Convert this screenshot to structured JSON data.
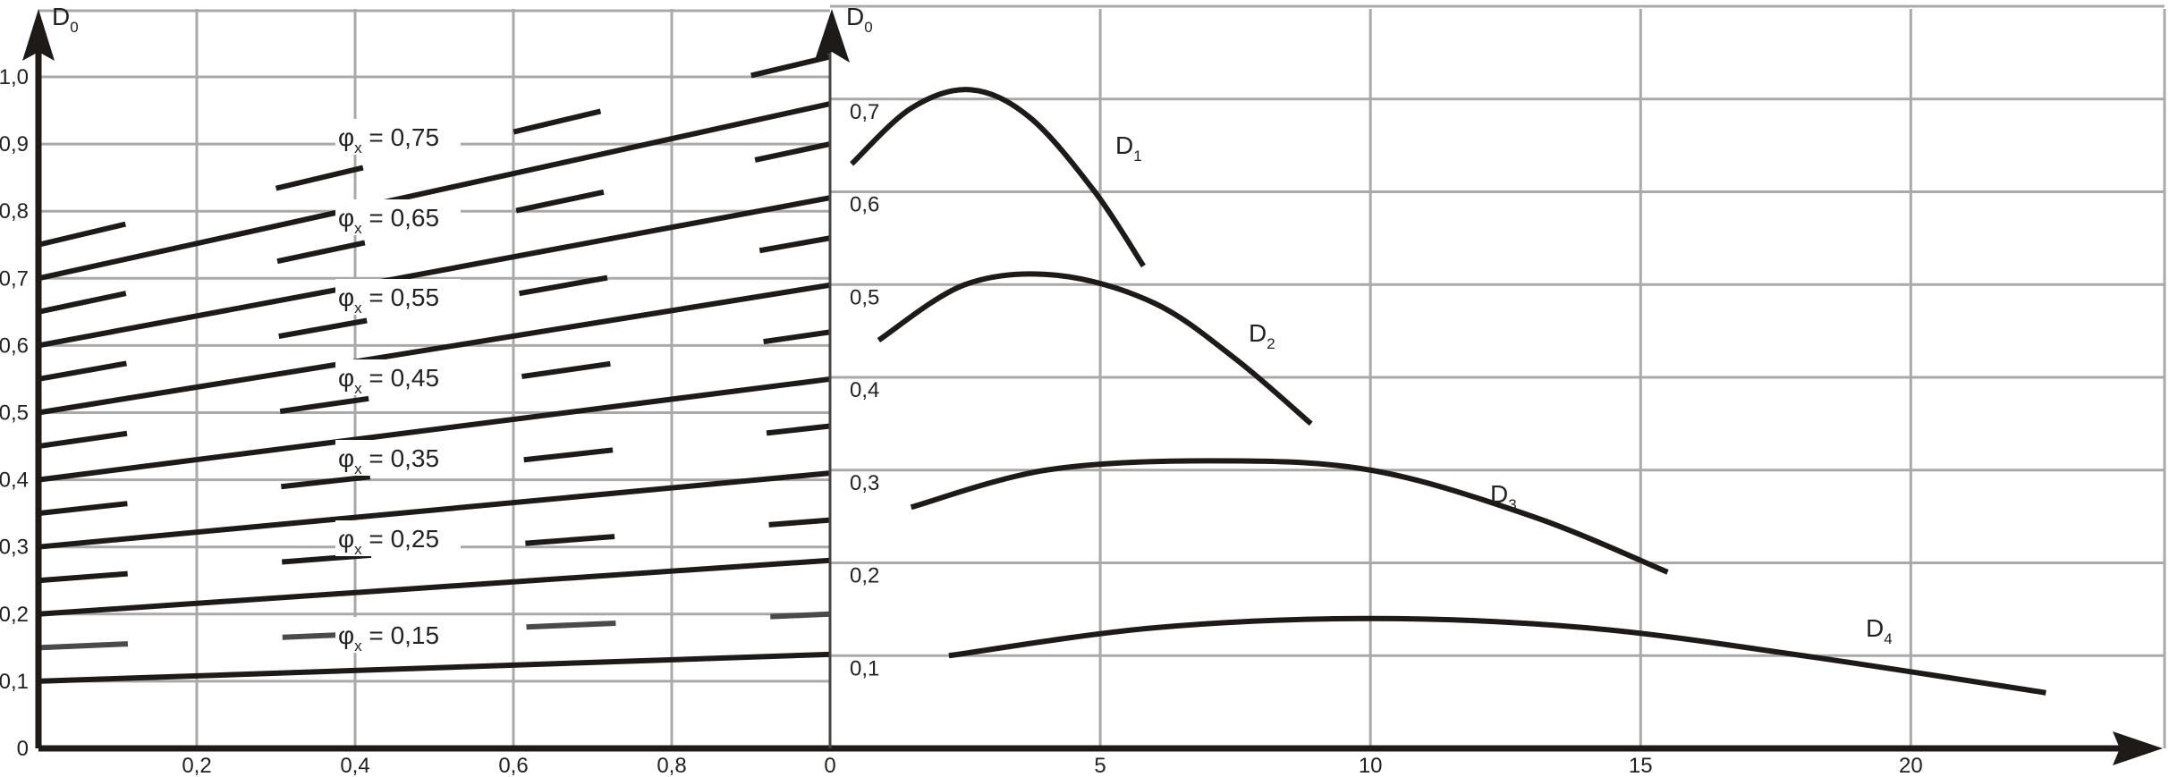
{
  "chart_data": [
    {
      "type": "line",
      "panel": "left",
      "ylabel": "D",
      "ylabel_sub": "0",
      "xlim": [
        0,
        1.0
      ],
      "ylim": [
        0,
        1.0
      ],
      "x_ticks": [
        "0,2",
        "0,4",
        "0,6",
        "0,8"
      ],
      "y_ticks": [
        "0",
        "0,1",
        "0,2",
        "0,3",
        "0,4",
        "0,5",
        "0,6",
        "0,7",
        "0,8",
        "0,9",
        "1,0"
      ],
      "grid": true,
      "series": [
        {
          "name": "φx = 0,15",
          "x": [
            0,
            1.0
          ],
          "y": [
            0.1,
            0.14
          ],
          "dashed": {
            "x": [
              0,
              1.0
            ],
            "y": [
              0.15,
              0.2
            ]
          }
        },
        {
          "name": "φx = 0,25",
          "x": [
            0,
            1.0
          ],
          "y": [
            0.2,
            0.28
          ],
          "dashed": {
            "x": [
              0,
              1.0
            ],
            "y": [
              0.25,
              0.34
            ]
          }
        },
        {
          "name": "φx = 0,35",
          "x": [
            0,
            1.0
          ],
          "y": [
            0.3,
            0.41
          ],
          "dashed": {
            "x": [
              0,
              1.0
            ],
            "y": [
              0.35,
              0.48
            ]
          }
        },
        {
          "name": "φx = 0,45",
          "x": [
            0,
            1.0
          ],
          "y": [
            0.4,
            0.55
          ],
          "dashed": {
            "x": [
              0,
              1.0
            ],
            "y": [
              0.45,
              0.62
            ]
          }
        },
        {
          "name": "φx = 0,55",
          "x": [
            0,
            1.0
          ],
          "y": [
            0.5,
            0.69
          ],
          "dashed": {
            "x": [
              0,
              1.0
            ],
            "y": [
              0.55,
              0.76
            ]
          }
        },
        {
          "name": "φx = 0,65",
          "x": [
            0,
            1.0
          ],
          "y": [
            0.6,
            0.82
          ],
          "dashed": {
            "x": [
              0,
              1.0
            ],
            "y": [
              0.65,
              0.9
            ]
          }
        },
        {
          "name": "φx = 0,75",
          "x": [
            0,
            1.0
          ],
          "y": [
            0.7,
            0.96
          ],
          "dashed": {
            "x": [
              0,
              1.0
            ],
            "y": [
              0.75,
              1.03
            ]
          }
        }
      ]
    },
    {
      "type": "line",
      "panel": "right",
      "ylabel": "D",
      "ylabel_sub": "0",
      "xlim": [
        0,
        24
      ],
      "ylim": [
        0,
        0.8
      ],
      "x_ticks": [
        "0",
        "5",
        "10",
        "15",
        "20"
      ],
      "y_ticks": [
        "0,1",
        "0,2",
        "0,3",
        "0,4",
        "0,5",
        "0,6",
        "0,7"
      ],
      "grid": true,
      "series": [
        {
          "name": "D",
          "sub": "1",
          "x": [
            0.4,
            1.5,
            2.6,
            3.7,
            4.9,
            5.8
          ],
          "y": [
            0.63,
            0.69,
            0.71,
            0.68,
            0.6,
            0.52
          ]
        },
        {
          "name": "D",
          "sub": "2",
          "x": [
            0.9,
            2.5,
            4.2,
            6.0,
            7.5,
            8.9
          ],
          "y": [
            0.44,
            0.5,
            0.51,
            0.48,
            0.42,
            0.35
          ]
        },
        {
          "name": "D",
          "sub": "3",
          "x": [
            1.5,
            4.0,
            7.0,
            10.0,
            13.0,
            15.5
          ],
          "y": [
            0.26,
            0.3,
            0.31,
            0.3,
            0.25,
            0.19
          ]
        },
        {
          "name": "D",
          "sub": "4",
          "x": [
            2.2,
            6.0,
            10.0,
            14.0,
            18.0,
            22.5
          ],
          "y": [
            0.1,
            0.13,
            0.14,
            0.13,
            0.1,
            0.06
          ]
        }
      ]
    }
  ],
  "left_labels": [
    "φx = 0,15",
    "φx = 0,25",
    "φx = 0,35",
    "φx = 0,45",
    "φx = 0,55",
    "φx = 0,65",
    "φx = 0,75"
  ],
  "right_labels": [
    {
      "base": "D",
      "sub": "1"
    },
    {
      "base": "D",
      "sub": "2"
    },
    {
      "base": "D",
      "sub": "3"
    },
    {
      "base": "D",
      "sub": "4"
    }
  ]
}
